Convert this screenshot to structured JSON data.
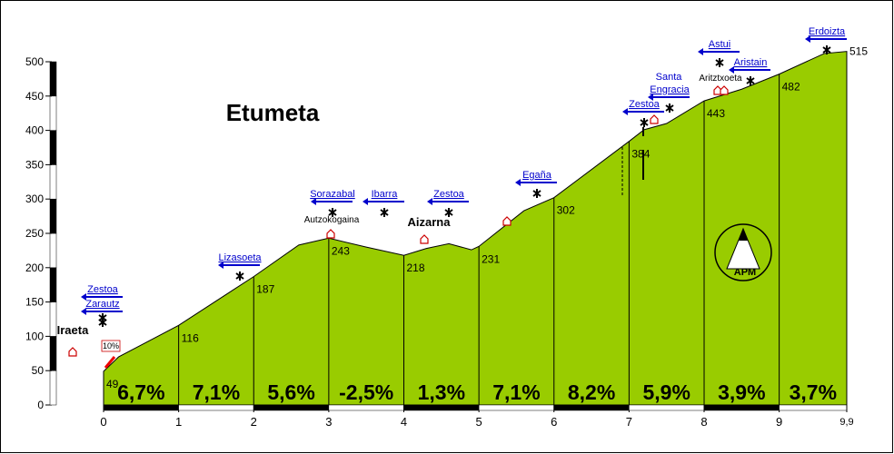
{
  "chart_data": {
    "type": "area",
    "title": "Etumeta",
    "x": [
      0,
      0.2,
      1,
      2,
      2.6,
      3,
      3.5,
      4,
      4.3,
      4.6,
      4.9,
      5,
      5.6,
      6,
      7,
      7.2,
      7.5,
      8,
      8.5,
      9,
      9.6,
      9.9
    ],
    "values": [
      49,
      70,
      116,
      187,
      233,
      243,
      230,
      218,
      228,
      235,
      226,
      231,
      283,
      302,
      384,
      401,
      410,
      443,
      460,
      482,
      512,
      515
    ],
    "color": "#99cc00",
    "xlim": [
      0,
      9.9
    ],
    "xticks": [
      0,
      1,
      2,
      3,
      4,
      5,
      6,
      7,
      8,
      9,
      {
        "value": 9.9,
        "label": "9,9"
      }
    ],
    "ylim": [
      0,
      500
    ],
    "yticks": [
      0,
      50,
      100,
      150,
      200,
      250,
      300,
      350,
      400,
      450,
      500
    ],
    "segment_labels": [
      "6,7%",
      "7,1%",
      "5,6%",
      "-2,5%",
      "1,3%",
      "7,1%",
      "8,2%",
      "5,9%",
      "3,9%",
      "3,7%"
    ],
    "annotations": [
      "Iraeta",
      "Zestoa",
      "Zarautz",
      "Lizasoeta",
      "Sorazabal",
      "Autzokogaina",
      "Ibarra",
      "Zestoa",
      "Aizarna",
      "Egaña",
      "Zestoa",
      "Santa",
      "Engracia",
      "Astui",
      "Aritztxoeta",
      "Aristain",
      "Erdoizta",
      "10%",
      "APM"
    ]
  }
}
